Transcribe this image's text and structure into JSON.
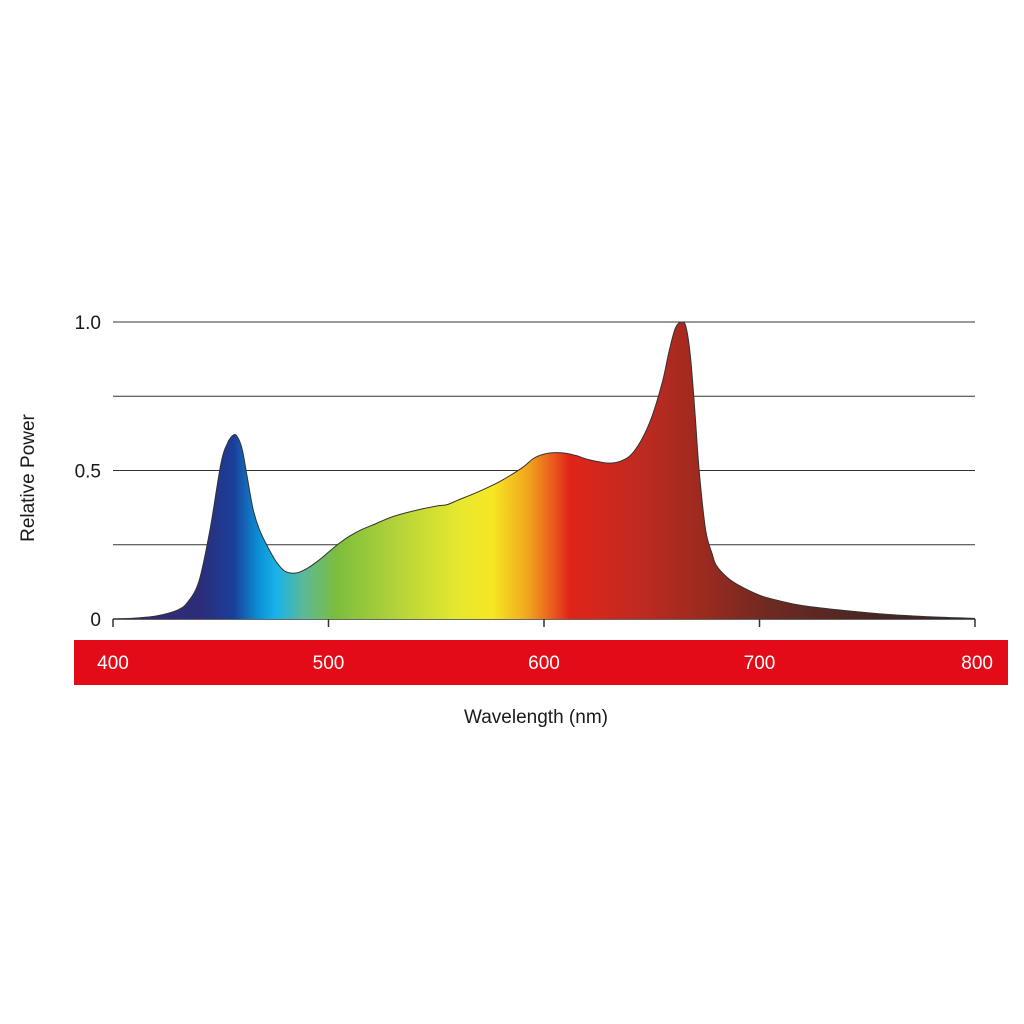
{
  "chart_data": {
    "type": "area",
    "title": "",
    "xlabel": "Wavelength (nm)",
    "ylabel": "Relative Power",
    "xlim": [
      400,
      800
    ],
    "ylim": [
      0,
      1.0
    ],
    "x_ticks": [
      "400",
      "500",
      "600",
      "700",
      "800"
    ],
    "y_ticks": [
      "0",
      "0.5",
      "1.0"
    ],
    "grid": "horizontal",
    "colors": {
      "axis_band": "#e30b17",
      "grid": "#333333",
      "outline": "#333333"
    },
    "series": [
      {
        "x": [
          400,
          410,
          420,
          430,
          435,
          440,
          445,
          450,
          453,
          456,
          458,
          460,
          462,
          465,
          468,
          472,
          476,
          480,
          485,
          490,
          495,
          500,
          505,
          510,
          515,
          520,
          530,
          540,
          550,
          555,
          560,
          570,
          580,
          590,
          595,
          600,
          605,
          610,
          615,
          620,
          625,
          630,
          635,
          640,
          645,
          650,
          655,
          658,
          661,
          664,
          666,
          668,
          670,
          672,
          675,
          678,
          680,
          685,
          690,
          700,
          710,
          720,
          740,
          760,
          780,
          800
        ],
        "values": [
          0.0,
          0.003,
          0.01,
          0.03,
          0.06,
          0.13,
          0.3,
          0.52,
          0.59,
          0.62,
          0.61,
          0.57,
          0.49,
          0.37,
          0.3,
          0.24,
          0.19,
          0.16,
          0.155,
          0.17,
          0.195,
          0.225,
          0.255,
          0.28,
          0.3,
          0.315,
          0.345,
          0.365,
          0.38,
          0.385,
          0.4,
          0.43,
          0.465,
          0.51,
          0.54,
          0.555,
          0.56,
          0.558,
          0.55,
          0.538,
          0.53,
          0.525,
          0.53,
          0.55,
          0.6,
          0.68,
          0.8,
          0.9,
          0.98,
          1.0,
          0.98,
          0.88,
          0.7,
          0.5,
          0.3,
          0.22,
          0.18,
          0.14,
          0.115,
          0.08,
          0.06,
          0.045,
          0.028,
          0.015,
          0.007,
          0.002
        ]
      }
    ]
  }
}
